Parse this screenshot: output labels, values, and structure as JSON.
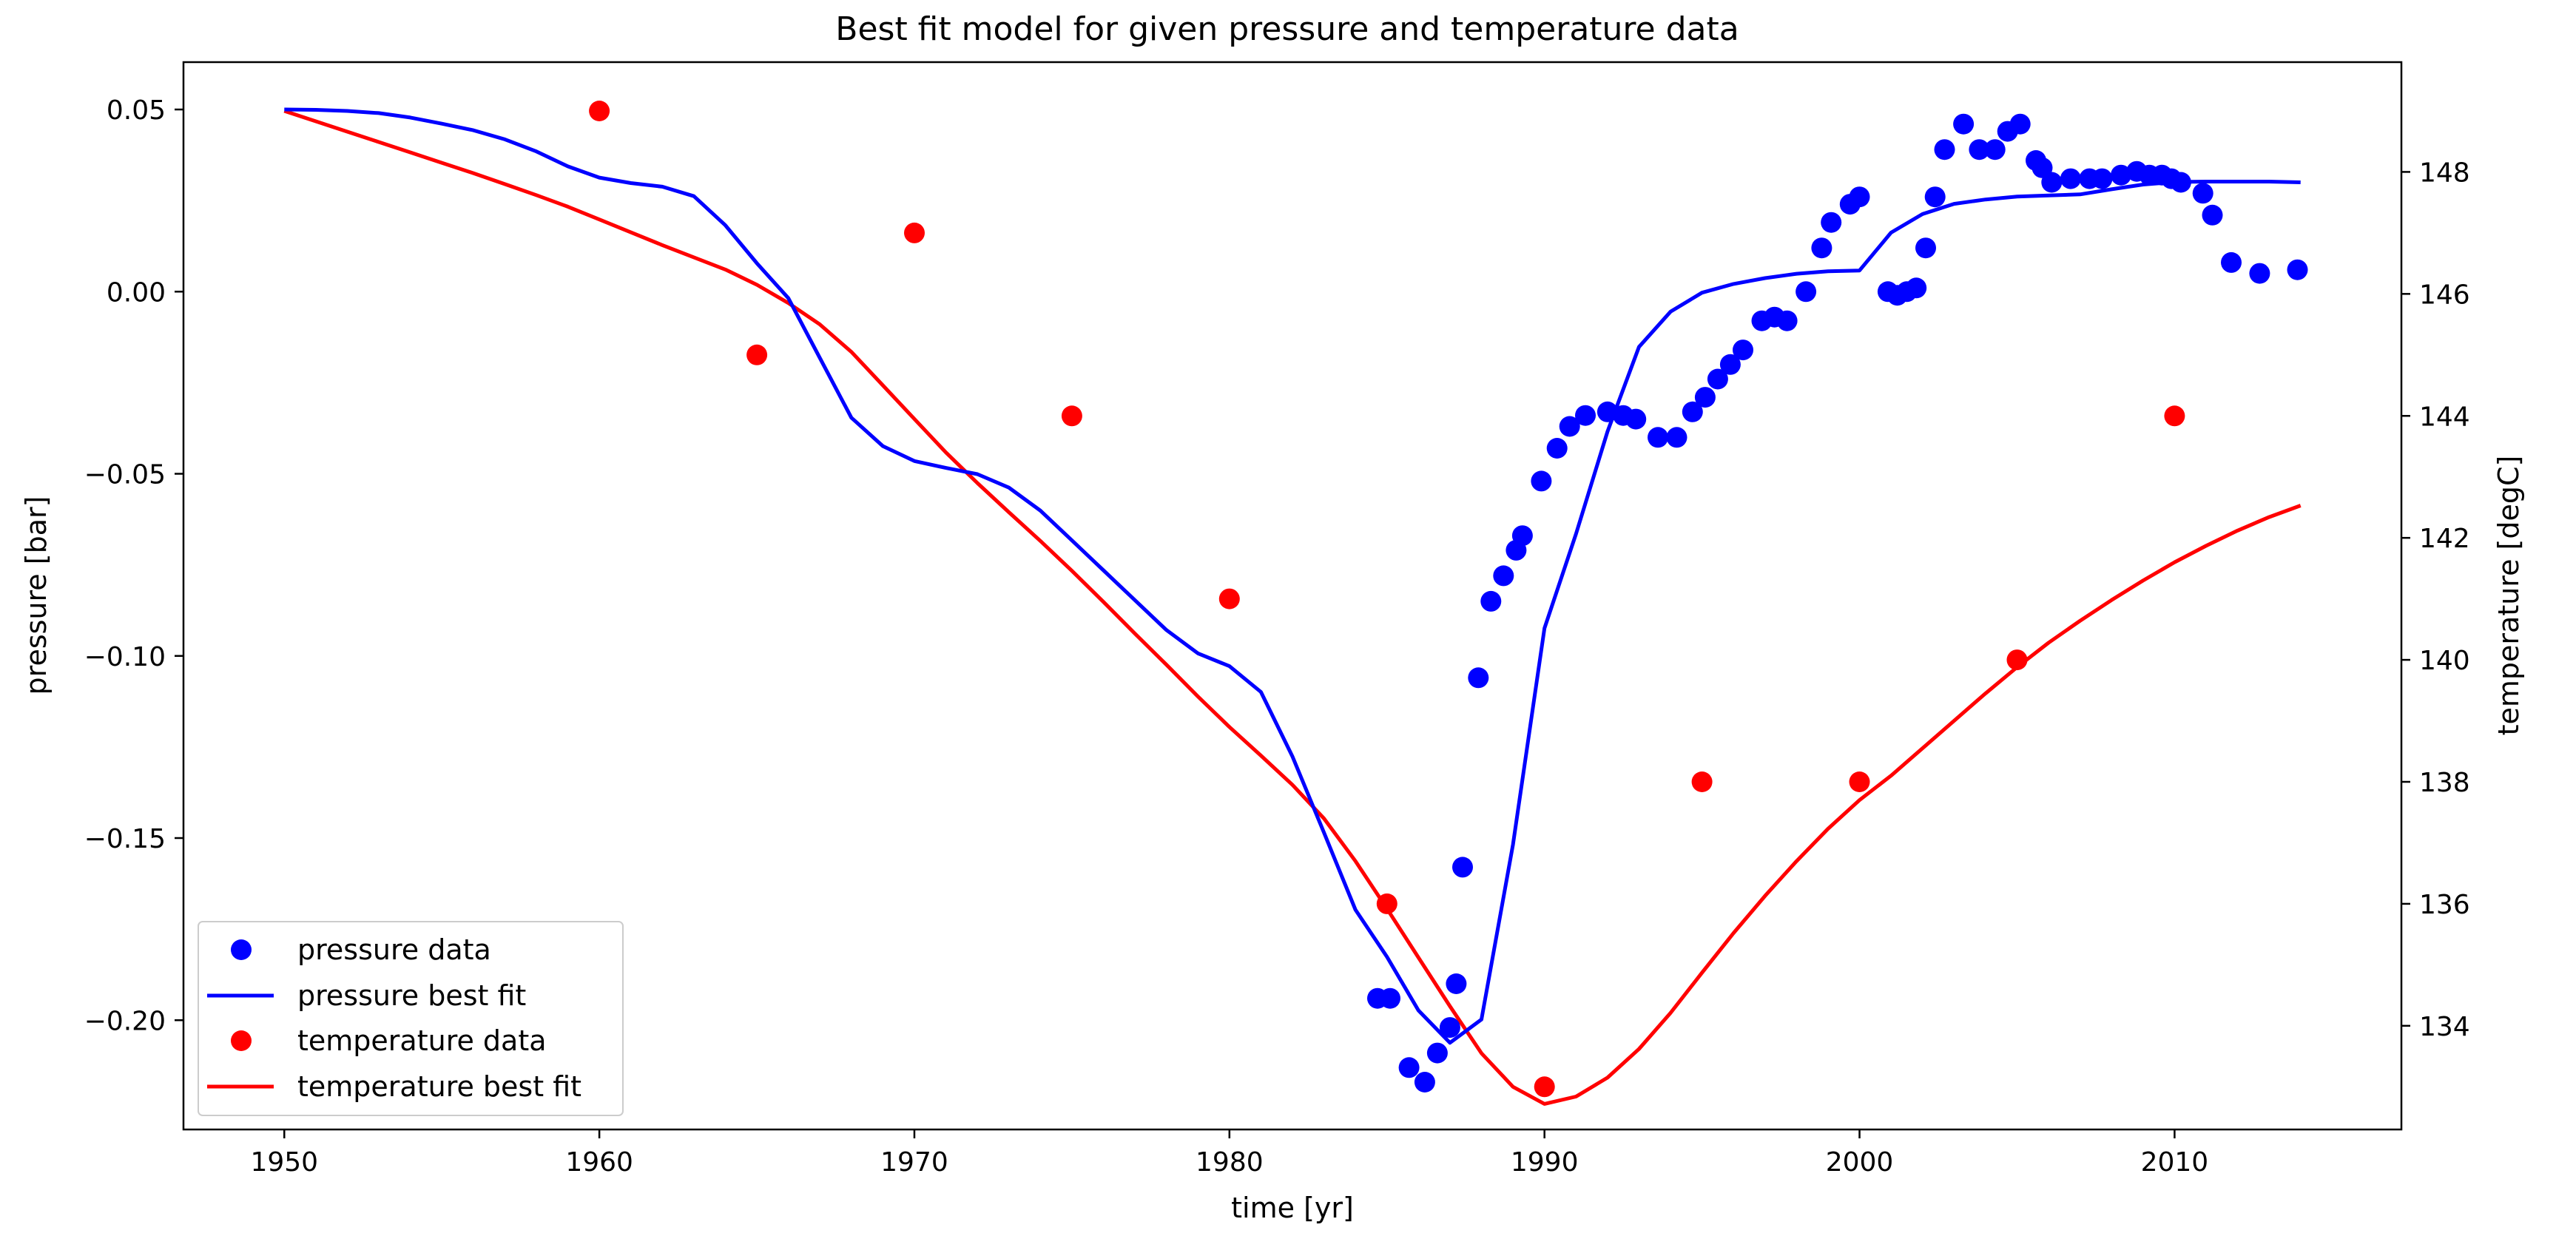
{
  "chart_data": {
    "type": "line",
    "title": "Best fit model for given pressure and temperature data",
    "xlabel": "time [yr]",
    "ylabel_left": "pressure [bar]",
    "ylabel_right": "temperature [degC]",
    "xlim": [
      1946.8,
      2017.2
    ],
    "ylim_left": [
      -0.23,
      0.063
    ],
    "ylim_right": [
      132.3,
      149.8
    ],
    "xticks": [
      1950,
      1960,
      1970,
      1980,
      1990,
      2000,
      2010
    ],
    "xtick_labels": [
      "1950",
      "1960",
      "1970",
      "1980",
      "1990",
      "2000",
      "2010"
    ],
    "yticks_left": [
      0.05,
      0.0,
      -0.05,
      -0.1,
      -0.15,
      -0.2
    ],
    "ytick_labels_left": [
      "0.05",
      "0.00",
      "−0.05",
      "−0.10",
      "−0.15",
      "−0.20"
    ],
    "yticks_right": [
      148,
      146,
      144,
      142,
      140,
      138,
      136,
      134
    ],
    "ytick_labels_right": [
      "148",
      "146",
      "144",
      "142",
      "140",
      "138",
      "136",
      "134"
    ],
    "grid": false,
    "legend_position": "lower-left",
    "colors": {
      "pressure": "#0000ff",
      "temperature": "#ff0000"
    },
    "series": [
      {
        "name": "pressure data",
        "kind": "scatter",
        "axis": "left",
        "x": [
          1984.7,
          1985.1,
          1985.7,
          1986.2,
          1986.6,
          1987.0,
          1987.2,
          1987.4,
          1987.9,
          1988.3,
          1988.7,
          1989.1,
          1989.3,
          1989.9,
          1990.4,
          1990.8,
          1991.3,
          1992.0,
          1992.5,
          1992.9,
          1993.6,
          1994.2,
          1994.7,
          1995.1,
          1995.5,
          1995.9,
          1996.3,
          1996.9,
          1997.3,
          1997.7,
          1998.3,
          1998.8,
          1999.1,
          1999.7,
          2000.0,
          2000.9,
          2001.2,
          2001.5,
          2001.8,
          2002.1,
          2002.4,
          2002.7,
          2003.3,
          2003.8,
          2004.3,
          2004.7,
          2005.1,
          2005.6,
          2005.8,
          2006.1,
          2006.7,
          2007.3,
          2007.7,
          2008.3,
          2008.8,
          2009.2,
          2009.6,
          2009.9,
          2010.2,
          2010.9,
          2011.2,
          2011.8,
          2012.7,
          2013.9
        ],
        "y": [
          -0.194,
          -0.194,
          -0.213,
          -0.217,
          -0.209,
          -0.202,
          -0.19,
          -0.158,
          -0.106,
          -0.085,
          -0.078,
          -0.071,
          -0.067,
          -0.052,
          -0.043,
          -0.037,
          -0.034,
          -0.033,
          -0.034,
          -0.035,
          -0.04,
          -0.04,
          -0.033,
          -0.029,
          -0.024,
          -0.02,
          -0.016,
          -0.008,
          -0.007,
          -0.008,
          0.0,
          0.012,
          0.019,
          0.024,
          0.026,
          0.0,
          -0.001,
          0.0,
          0.001,
          0.012,
          0.026,
          0.039,
          0.046,
          0.039,
          0.039,
          0.044,
          0.046,
          0.036,
          0.034,
          0.03,
          0.031,
          0.031,
          0.031,
          0.032,
          0.033,
          0.032,
          0.032,
          0.031,
          0.03,
          0.027,
          0.021,
          0.008,
          0.005,
          0.006
        ]
      },
      {
        "name": "pressure best fit",
        "kind": "line",
        "axis": "left",
        "x": [
          1950,
          1951,
          1952,
          1953,
          1954,
          1955,
          1956,
          1957,
          1958,
          1959,
          1960,
          1961,
          1962,
          1963,
          1964,
          1965,
          1966,
          1967,
          1968,
          1969,
          1970,
          1971,
          1972,
          1973,
          1974,
          1975,
          1976,
          1977,
          1978,
          1979,
          1980,
          1981,
          1982,
          1983,
          1984,
          1985,
          1986,
          1987,
          1988,
          1989,
          1990,
          1991,
          1992,
          1993,
          1994,
          1995,
          1996,
          1997,
          1998,
          1999,
          2000,
          2001,
          2002,
          2003,
          2004,
          2005,
          2006,
          2007,
          2008,
          2009,
          2010,
          2011,
          2012,
          2013,
          2014
        ],
        "y": [
          0.05,
          0.0499,
          0.0496,
          0.049,
          0.0478,
          0.0461,
          0.0443,
          0.0418,
          0.0385,
          0.0344,
          0.0313,
          0.0298,
          0.0288,
          0.0262,
          0.0182,
          0.0078,
          -0.0018,
          -0.0182,
          -0.0346,
          -0.0424,
          -0.0465,
          -0.0484,
          -0.0501,
          -0.0538,
          -0.0601,
          -0.0683,
          -0.0765,
          -0.0847,
          -0.0929,
          -0.0993,
          -0.1028,
          -0.1099,
          -0.1276,
          -0.1485,
          -0.1697,
          -0.1826,
          -0.1973,
          -0.2062,
          -0.1998,
          -0.1518,
          -0.0924,
          -0.0665,
          -0.0384,
          -0.0152,
          -0.0055,
          -0.0003,
          0.0021,
          0.0037,
          0.0049,
          0.0056,
          0.0058,
          0.0162,
          0.0213,
          0.0241,
          0.0253,
          0.0261,
          0.0264,
          0.0267,
          0.0281,
          0.0294,
          0.0301,
          0.0302,
          0.0302,
          0.0302,
          0.03
        ]
      },
      {
        "name": "temperature data",
        "kind": "scatter",
        "axis": "right",
        "x": [
          1960,
          1965,
          1970,
          1975,
          1980,
          1985,
          1990,
          1995,
          2000,
          2005,
          2010
        ],
        "y": [
          149,
          145,
          147,
          144,
          141,
          136,
          133,
          138,
          138,
          140,
          144
        ]
      },
      {
        "name": "temperature best fit",
        "kind": "line",
        "axis": "right",
        "x": [
          1950,
          1951,
          1952,
          1953,
          1954,
          1955,
          1956,
          1957,
          1958,
          1959,
          1960,
          1961,
          1962,
          1963,
          1964,
          1965,
          1966,
          1967,
          1968,
          1969,
          1970,
          1971,
          1972,
          1973,
          1974,
          1975,
          1976,
          1977,
          1978,
          1979,
          1980,
          1981,
          1982,
          1983,
          1984,
          1985,
          1986,
          1987,
          1988,
          1989,
          1990,
          1991,
          1992,
          1993,
          1994,
          1995,
          1996,
          1997,
          1998,
          1999,
          2000,
          2001,
          2002,
          2003,
          2004,
          2005,
          2006,
          2007,
          2008,
          2009,
          2010,
          2011,
          2012,
          2013,
          2014
        ],
        "y": [
          149.0,
          148.83,
          148.66,
          148.49,
          148.32,
          148.15,
          147.98,
          147.8,
          147.62,
          147.43,
          147.22,
          147.01,
          146.8,
          146.6,
          146.4,
          146.15,
          145.85,
          145.5,
          145.05,
          144.5,
          143.95,
          143.4,
          142.9,
          142.42,
          141.95,
          141.46,
          140.95,
          140.43,
          139.92,
          139.4,
          138.9,
          138.43,
          137.95,
          137.4,
          136.7,
          135.92,
          135.12,
          134.32,
          133.55,
          133.0,
          132.72,
          132.84,
          133.15,
          133.62,
          134.21,
          134.87,
          135.52,
          136.13,
          136.7,
          137.23,
          137.7,
          138.1,
          138.55,
          139.0,
          139.45,
          139.88,
          140.28,
          140.64,
          140.98,
          141.3,
          141.6,
          141.87,
          142.12,
          142.34,
          142.53
        ]
      }
    ]
  }
}
